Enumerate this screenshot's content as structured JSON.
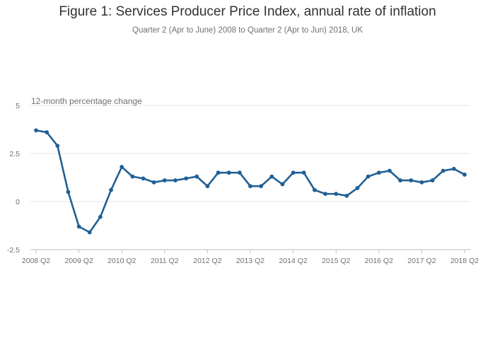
{
  "chart_data": {
    "type": "line",
    "title": "Figure 1: Services Producer Price Index, annual rate of inflation",
    "subtitle": "Quarter 2 (Apr to June) 2008 to Quarter 2 (Apr to Jun) 2018, UK",
    "ylabel": "12-month percentage change",
    "xlabel": "",
    "ylim": [
      -2.5,
      5
    ],
    "yticks": [
      -2.5,
      0,
      2.5,
      5
    ],
    "ytick_labels": [
      "-2.5",
      "0",
      "2.5",
      "5"
    ],
    "xtick_labels": [
      "2008 Q2",
      "2009 Q2",
      "2010 Q2",
      "2011 Q2",
      "2012 Q2",
      "2013 Q2",
      "2014 Q2",
      "2015 Q2",
      "2016 Q2",
      "2017 Q2",
      "2018 Q2"
    ],
    "grid": true,
    "legend": "none",
    "line_color": "#206095",
    "series": [
      {
        "values": [
          3.7,
          3.6,
          2.9,
          0.5,
          -1.3,
          -1.6,
          -0.8,
          0.6,
          1.8,
          1.3,
          1.2,
          1.0,
          1.1,
          1.1,
          1.2,
          1.3,
          0.8,
          1.5,
          1.5,
          1.5,
          0.8,
          0.8,
          1.3,
          0.9,
          1.5,
          1.5,
          0.6,
          0.4,
          0.4,
          0.3,
          0.7,
          1.3,
          1.5,
          1.6,
          1.1,
          1.1,
          1.0,
          1.1,
          1.6,
          1.7,
          1.4
        ]
      }
    ]
  }
}
